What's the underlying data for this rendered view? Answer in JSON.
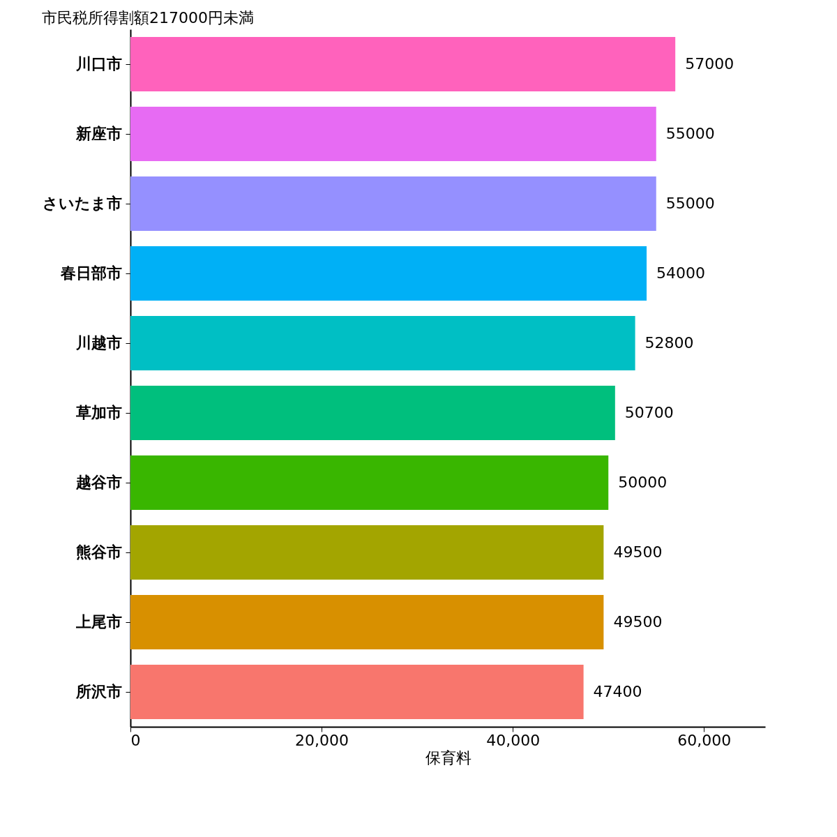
{
  "chart_data": {
    "type": "bar",
    "orientation": "horizontal",
    "title": "市民税所得割額217000円未満",
    "xlabel": "保育料",
    "categories": [
      "川口市",
      "新座市",
      "さいたま市",
      "春日部市",
      "川越市",
      "草加市",
      "越谷市",
      "熊谷市",
      "上尾市",
      "所沢市"
    ],
    "values": [
      57000,
      55000,
      55000,
      54000,
      52800,
      50700,
      50000,
      49500,
      49500,
      47400
    ],
    "colors": [
      "#ff62bc",
      "#e76bf3",
      "#9590ff",
      "#00b0f6",
      "#00bfc4",
      "#00bf7d",
      "#39b600",
      "#a3a500",
      "#d89000",
      "#f8766d"
    ],
    "xlim": [
      0,
      66400
    ],
    "xticks": [
      0,
      {
        "value": 20000,
        "label": "20,000"
      },
      {
        "value": 40000,
        "label": "40,000"
      },
      {
        "value": 60000,
        "label": "60,000"
      }
    ],
    "data_labels": true,
    "grid": false
  }
}
